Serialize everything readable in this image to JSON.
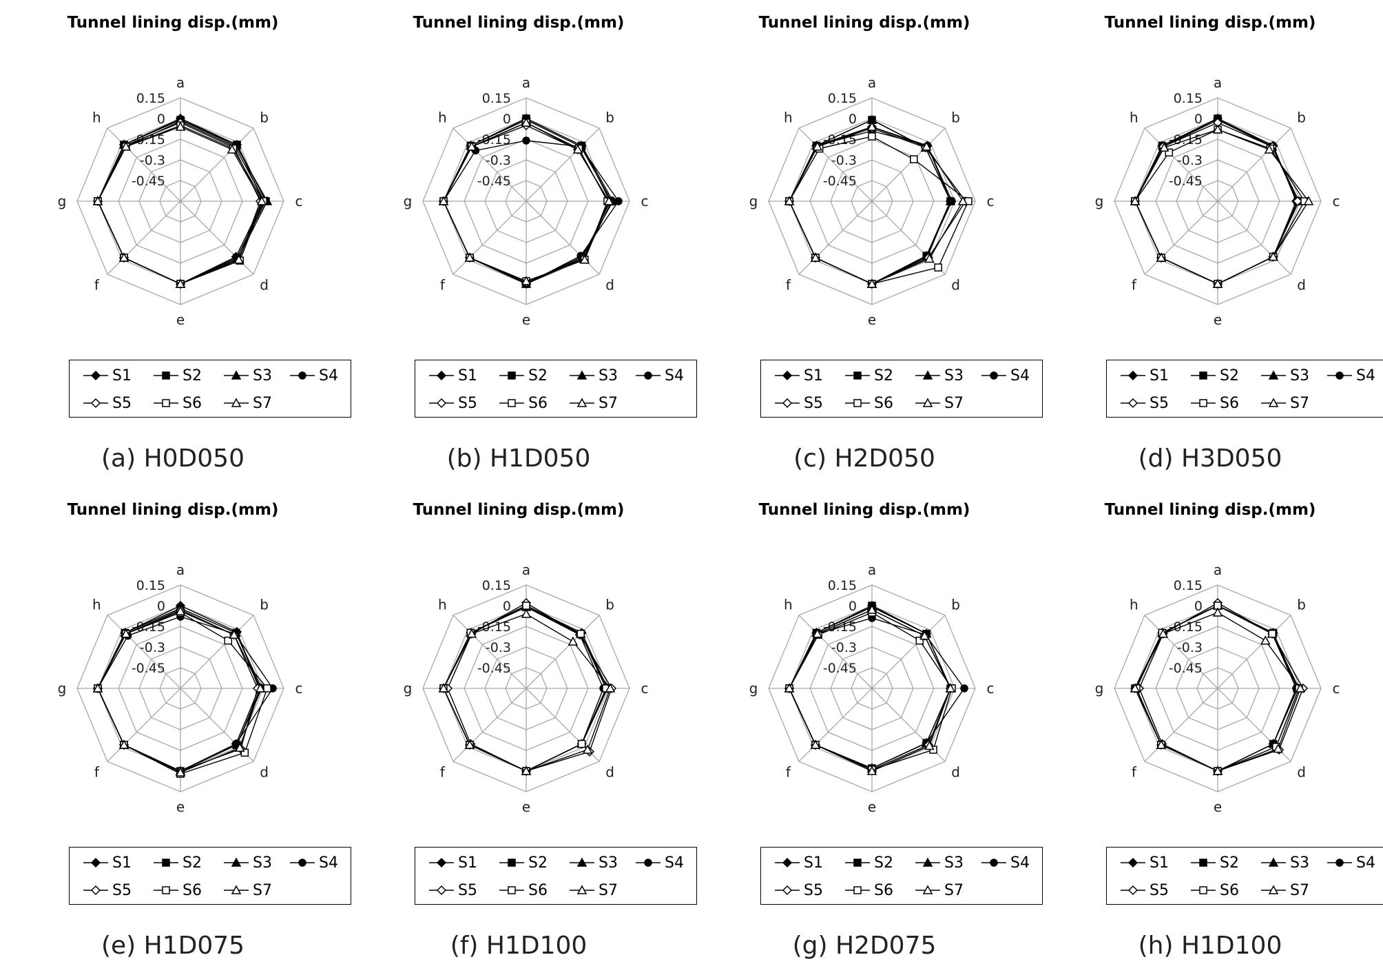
{
  "figure": {
    "panel_title": "Tunnel lining disp.(mm)",
    "axes": [
      "a",
      "b",
      "c",
      "d",
      "e",
      "f",
      "g",
      "h"
    ],
    "tick_labels": [
      "-0.45",
      "-0.3",
      "-0.15",
      "0",
      "0.15"
    ],
    "series_names": [
      "S1",
      "S2",
      "S3",
      "S4",
      "S5",
      "S6",
      "S7"
    ]
  },
  "chart_data": [
    {
      "type": "radar",
      "caption": "(a) H0D050",
      "title": "Tunnel lining disp.(mm)",
      "rlim": [
        -0.6,
        0.15
      ],
      "ticks": [
        -0.45,
        -0.3,
        -0.15,
        0,
        0.15
      ],
      "categories": [
        "a",
        "b",
        "c",
        "d",
        "e",
        "f",
        "g",
        "h"
      ],
      "series": [
        {
          "name": "S1",
          "marker": "diamond-filled",
          "values": [
            0.0,
            -0.02,
            0.0,
            -0.03,
            0.0,
            -0.02,
            0.0,
            -0.02
          ]
        },
        {
          "name": "S2",
          "marker": "square-filled",
          "values": [
            -0.01,
            -0.02,
            0.02,
            -0.02,
            0.0,
            -0.02,
            0.0,
            -0.02
          ]
        },
        {
          "name": "S3",
          "marker": "triangle-filled",
          "values": [
            -0.01,
            -0.03,
            0.03,
            -0.01,
            0.0,
            -0.02,
            0.0,
            -0.02
          ]
        },
        {
          "name": "S4",
          "marker": "circle-filled",
          "values": [
            -0.02,
            -0.04,
            0.01,
            -0.02,
            0.0,
            -0.02,
            0.0,
            -0.04
          ]
        },
        {
          "name": "S5",
          "marker": "diamond-open",
          "values": [
            -0.03,
            -0.05,
            -0.02,
            0.0,
            0.0,
            -0.02,
            0.0,
            -0.03
          ]
        },
        {
          "name": "S6",
          "marker": "square-open",
          "values": [
            -0.05,
            -0.06,
            0.0,
            0.01,
            0.0,
            -0.02,
            0.0,
            -0.04
          ]
        },
        {
          "name": "S7",
          "marker": "triangle-open",
          "values": [
            -0.06,
            -0.07,
            -0.01,
            0.0,
            0.0,
            -0.02,
            0.0,
            -0.04
          ]
        }
      ]
    },
    {
      "type": "radar",
      "caption": "(b) H1D050",
      "title": "Tunnel lining disp.(mm)",
      "rlim": [
        -0.6,
        0.15
      ],
      "ticks": [
        -0.45,
        -0.3,
        -0.15,
        0,
        0.15
      ],
      "categories": [
        "a",
        "b",
        "c",
        "d",
        "e",
        "f",
        "g",
        "h"
      ],
      "series": [
        {
          "name": "S1",
          "marker": "diamond-filled",
          "values": [
            0.0,
            -0.03,
            0.03,
            -0.03,
            0.0,
            -0.02,
            0.0,
            -0.03
          ]
        },
        {
          "name": "S2",
          "marker": "square-filled",
          "values": [
            0.0,
            -0.03,
            0.01,
            -0.02,
            0.0,
            -0.02,
            0.0,
            -0.03
          ]
        },
        {
          "name": "S3",
          "marker": "triangle-filled",
          "values": [
            -0.01,
            -0.04,
            0.02,
            -0.01,
            0.0,
            -0.02,
            0.0,
            -0.03
          ]
        },
        {
          "name": "S4",
          "marker": "circle-filled",
          "values": [
            -0.16,
            -0.04,
            0.07,
            -0.04,
            0.0,
            -0.02,
            0.0,
            -0.08
          ]
        },
        {
          "name": "S5",
          "marker": "diamond-open",
          "values": [
            -0.05,
            -0.07,
            0.0,
            -0.01,
            -0.01,
            -0.02,
            0.0,
            -0.04
          ]
        },
        {
          "name": "S6",
          "marker": "square-open",
          "values": [
            -0.03,
            -0.06,
            -0.01,
            0.0,
            -0.02,
            -0.02,
            0.0,
            -0.04
          ]
        },
        {
          "name": "S7",
          "marker": "triangle-open",
          "values": [
            -0.03,
            -0.07,
            0.0,
            0.0,
            -0.02,
            -0.02,
            0.0,
            -0.04
          ]
        }
      ]
    },
    {
      "type": "radar",
      "caption": "(c) H2D050",
      "title": "Tunnel lining disp.(mm)",
      "rlim": [
        -0.6,
        0.15
      ],
      "ticks": [
        -0.45,
        -0.3,
        -0.15,
        0,
        0.15
      ],
      "categories": [
        "a",
        "b",
        "c",
        "d",
        "e",
        "f",
        "g",
        "h"
      ],
      "series": [
        {
          "name": "S1",
          "marker": "diamond-filled",
          "values": [
            -0.06,
            -0.03,
            -0.03,
            -0.03,
            0.0,
            -0.02,
            0.0,
            -0.03
          ]
        },
        {
          "name": "S2",
          "marker": "square-filled",
          "values": [
            -0.01,
            -0.05,
            -0.03,
            -0.04,
            0.0,
            -0.02,
            0.0,
            -0.03
          ]
        },
        {
          "name": "S3",
          "marker": "triangle-filled",
          "values": [
            -0.01,
            -0.05,
            -0.03,
            -0.04,
            0.0,
            -0.02,
            0.0,
            -0.03
          ]
        },
        {
          "name": "S4",
          "marker": "circle-filled",
          "values": [
            -0.09,
            -0.03,
            -0.02,
            -0.04,
            0.0,
            -0.02,
            0.0,
            -0.03
          ]
        },
        {
          "name": "S5",
          "marker": "diamond-open",
          "values": [
            -0.07,
            -0.05,
            0.08,
            -0.02,
            0.0,
            -0.02,
            0.0,
            -0.04
          ]
        },
        {
          "name": "S6",
          "marker": "square-open",
          "values": [
            -0.13,
            -0.17,
            0.1,
            0.08,
            0.0,
            -0.02,
            0.0,
            -0.06
          ]
        },
        {
          "name": "S7",
          "marker": "triangle-open",
          "values": [
            -0.06,
            -0.04,
            0.06,
            -0.01,
            0.0,
            -0.02,
            0.0,
            -0.04
          ]
        }
      ]
    },
    {
      "type": "radar",
      "caption": "(d) H3D050",
      "title": "Tunnel lining disp.(mm)",
      "rlim": [
        -0.6,
        0.15
      ],
      "ticks": [
        -0.45,
        -0.3,
        -0.15,
        0,
        0.15
      ],
      "categories": [
        "a",
        "b",
        "c",
        "d",
        "e",
        "f",
        "g",
        "h"
      ],
      "series": [
        {
          "name": "S1",
          "marker": "diamond-filled",
          "values": [
            0.0,
            -0.03,
            -0.03,
            -0.03,
            0.0,
            -0.02,
            0.0,
            -0.03
          ]
        },
        {
          "name": "S2",
          "marker": "square-filled",
          "values": [
            0.0,
            -0.04,
            -0.02,
            -0.03,
            0.0,
            -0.02,
            0.0,
            -0.03
          ]
        },
        {
          "name": "S3",
          "marker": "triangle-filled",
          "values": [
            0.0,
            -0.04,
            -0.01,
            -0.03,
            0.0,
            -0.02,
            0.0,
            -0.04
          ]
        },
        {
          "name": "S4",
          "marker": "circle-filled",
          "values": [
            -0.01,
            -0.04,
            -0.02,
            -0.03,
            0.0,
            -0.02,
            0.0,
            -0.04
          ]
        },
        {
          "name": "S5",
          "marker": "diamond-open",
          "values": [
            -0.03,
            -0.04,
            -0.02,
            -0.03,
            0.0,
            -0.02,
            0.0,
            -0.04
          ]
        },
        {
          "name": "S6",
          "marker": "square-open",
          "values": [
            -0.08,
            -0.06,
            0.03,
            -0.03,
            0.0,
            -0.02,
            0.0,
            -0.1
          ]
        },
        {
          "name": "S7",
          "marker": "triangle-open",
          "values": [
            -0.08,
            -0.07,
            0.06,
            -0.03,
            0.0,
            -0.02,
            0.0,
            -0.05
          ]
        }
      ]
    },
    {
      "type": "radar",
      "caption": "(e) H1D075",
      "title": "Tunnel lining disp.(mm)",
      "rlim": [
        -0.6,
        0.15
      ],
      "ticks": [
        -0.45,
        -0.3,
        -0.15,
        0,
        0.15
      ],
      "categories": [
        "a",
        "b",
        "c",
        "d",
        "e",
        "f",
        "g",
        "h"
      ],
      "series": [
        {
          "name": "S1",
          "marker": "diamond-filled",
          "values": [
            0.0,
            -0.02,
            -0.03,
            -0.03,
            0.0,
            -0.02,
            0.0,
            -0.03
          ]
        },
        {
          "name": "S2",
          "marker": "square-filled",
          "values": [
            -0.02,
            -0.03,
            -0.02,
            -0.02,
            0.0,
            -0.02,
            0.0,
            -0.03
          ]
        },
        {
          "name": "S3",
          "marker": "triangle-filled",
          "values": [
            -0.02,
            -0.03,
            -0.01,
            -0.02,
            0.0,
            -0.02,
            0.0,
            -0.03
          ]
        },
        {
          "name": "S4",
          "marker": "circle-filled",
          "values": [
            -0.08,
            -0.04,
            0.07,
            -0.03,
            0.0,
            -0.02,
            0.0,
            -0.06
          ]
        },
        {
          "name": "S5",
          "marker": "diamond-open",
          "values": [
            -0.03,
            -0.05,
            -0.04,
            0.02,
            0.0,
            -0.02,
            0.0,
            -0.04
          ]
        },
        {
          "name": "S6",
          "marker": "square-open",
          "values": [
            -0.05,
            -0.11,
            0.03,
            0.06,
            0.02,
            -0.02,
            0.0,
            -0.04
          ]
        },
        {
          "name": "S7",
          "marker": "triangle-open",
          "values": [
            -0.04,
            -0.05,
            -0.02,
            0.01,
            0.01,
            -0.02,
            0.0,
            -0.04
          ]
        }
      ]
    },
    {
      "type": "radar",
      "caption": "(f) H1D100",
      "title": "Tunnel lining disp.(mm)",
      "rlim": [
        -0.6,
        0.15
      ],
      "ticks": [
        -0.45,
        -0.3,
        -0.15,
        0,
        0.15
      ],
      "categories": [
        "a",
        "b",
        "c",
        "d",
        "e",
        "f",
        "g",
        "h"
      ],
      "series": [
        {
          "name": "S1",
          "marker": "diamond-filled",
          "values": [
            0.0,
            -0.03,
            -0.01,
            -0.03,
            0.0,
            -0.02,
            0.0,
            -0.03
          ]
        },
        {
          "name": "S2",
          "marker": "square-filled",
          "values": [
            0.0,
            -0.04,
            -0.02,
            -0.03,
            0.0,
            -0.02,
            0.0,
            -0.03
          ]
        },
        {
          "name": "S3",
          "marker": "triangle-filled",
          "values": [
            -0.01,
            -0.04,
            -0.01,
            -0.03,
            0.0,
            -0.02,
            0.0,
            -0.03
          ]
        },
        {
          "name": "S4",
          "marker": "circle-filled",
          "values": [
            -0.01,
            -0.05,
            -0.04,
            -0.03,
            0.0,
            -0.02,
            0.0,
            -0.03
          ]
        },
        {
          "name": "S5",
          "marker": "diamond-open",
          "values": [
            0.02,
            -0.05,
            0.02,
            0.05,
            0.0,
            -0.03,
            -0.03,
            -0.04
          ]
        },
        {
          "name": "S6",
          "marker": "square-open",
          "values": [
            0.0,
            -0.04,
            -0.02,
            -0.03,
            0.0,
            -0.02,
            0.0,
            -0.03
          ]
        },
        {
          "name": "S7",
          "marker": "triangle-open",
          "values": [
            -0.06,
            -0.12,
            0.01,
            0.03,
            0.0,
            -0.02,
            0.0,
            -0.04
          ]
        }
      ]
    },
    {
      "type": "radar",
      "caption": "(g) H2D075",
      "title": "Tunnel lining disp.(mm)",
      "rlim": [
        -0.6,
        0.15
      ],
      "ticks": [
        -0.45,
        -0.3,
        -0.15,
        0,
        0.15
      ],
      "categories": [
        "a",
        "b",
        "c",
        "d",
        "e",
        "f",
        "g",
        "h"
      ],
      "series": [
        {
          "name": "S1",
          "marker": "diamond-filled",
          "values": [
            0.0,
            -0.04,
            -0.03,
            -0.04,
            -0.02,
            -0.02,
            0.0,
            -0.03
          ]
        },
        {
          "name": "S2",
          "marker": "square-filled",
          "values": [
            0.0,
            -0.04,
            -0.03,
            -0.04,
            -0.02,
            -0.02,
            0.0,
            -0.03
          ]
        },
        {
          "name": "S3",
          "marker": "triangle-filled",
          "values": [
            -0.01,
            -0.04,
            -0.03,
            -0.04,
            -0.02,
            -0.02,
            0.0,
            -0.03
          ]
        },
        {
          "name": "S4",
          "marker": "circle-filled",
          "values": [
            -0.09,
            -0.05,
            0.07,
            -0.04,
            -0.02,
            -0.02,
            0.0,
            -0.04
          ]
        },
        {
          "name": "S5",
          "marker": "diamond-open",
          "values": [
            -0.03,
            -0.06,
            -0.03,
            -0.02,
            -0.01,
            -0.02,
            0.0,
            -0.04
          ]
        },
        {
          "name": "S6",
          "marker": "square-open",
          "values": [
            -0.05,
            -0.11,
            -0.02,
            0.03,
            -0.01,
            -0.02,
            0.0,
            -0.05
          ]
        },
        {
          "name": "S7",
          "marker": "triangle-open",
          "values": [
            -0.03,
            -0.06,
            -0.03,
            -0.01,
            0.0,
            -0.02,
            0.0,
            -0.04
          ]
        }
      ]
    },
    {
      "type": "radar",
      "caption": "(h) H1D100",
      "title": "Tunnel lining disp.(mm)",
      "rlim": [
        -0.6,
        0.15
      ],
      "ticks": [
        -0.45,
        -0.3,
        -0.15,
        0,
        0.15
      ],
      "categories": [
        "a",
        "b",
        "c",
        "d",
        "e",
        "f",
        "g",
        "h"
      ],
      "series": [
        {
          "name": "S1",
          "marker": "diamond-filled",
          "values": [
            0.0,
            -0.03,
            -0.02,
            -0.03,
            0.0,
            -0.02,
            0.0,
            -0.03
          ]
        },
        {
          "name": "S2",
          "marker": "square-filled",
          "values": [
            0.0,
            -0.03,
            -0.02,
            -0.03,
            0.0,
            -0.02,
            0.0,
            -0.03
          ]
        },
        {
          "name": "S3",
          "marker": "triangle-filled",
          "values": [
            0.0,
            -0.04,
            -0.02,
            -0.03,
            0.0,
            -0.02,
            0.0,
            -0.03
          ]
        },
        {
          "name": "S4",
          "marker": "circle-filled",
          "values": [
            0.0,
            -0.04,
            -0.03,
            -0.03,
            0.0,
            -0.02,
            0.0,
            -0.03
          ]
        },
        {
          "name": "S5",
          "marker": "diamond-open",
          "values": [
            0.02,
            -0.04,
            0.02,
            0.03,
            0.0,
            -0.03,
            -0.03,
            -0.04
          ]
        },
        {
          "name": "S6",
          "marker": "square-open",
          "values": [
            0.0,
            -0.04,
            -0.01,
            0.0,
            0.0,
            -0.02,
            -0.01,
            -0.03
          ]
        },
        {
          "name": "S7",
          "marker": "triangle-open",
          "values": [
            -0.05,
            -0.11,
            0.0,
            0.02,
            0.0,
            -0.02,
            0.0,
            -0.04
          ]
        }
      ]
    }
  ]
}
